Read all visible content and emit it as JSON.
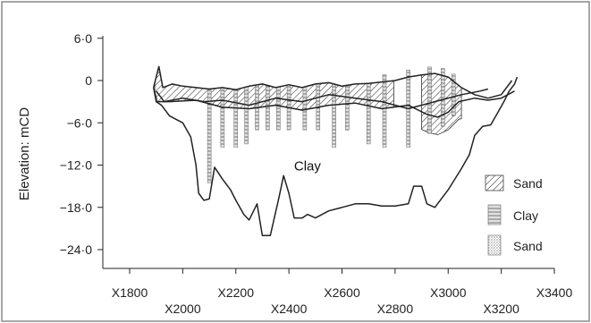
{
  "chart_data": {
    "type": "line",
    "title": "",
    "xlabel": "",
    "ylabel": "Elevation: mCD",
    "x_ticks": [
      "X1800",
      "X2000",
      "X2200",
      "X2400",
      "X2600",
      "X2800",
      "X3000",
      "X3200",
      "X3400"
    ],
    "x_range": [
      1800,
      3400
    ],
    "y_ticks": [
      "6·0",
      "0",
      "−6·0",
      "−12·0",
      "−18·0",
      "−24·0"
    ],
    "y_tick_values": [
      6,
      0,
      -6,
      -12,
      -18,
      -24
    ],
    "ylim": [
      -27,
      7.5
    ],
    "grid": false,
    "legend_position": "right",
    "annotations": [
      {
        "text": "Clay",
        "x": 2470,
        "y": -12
      }
    ],
    "legend": [
      {
        "label": "Sand",
        "pattern": "diagonal-hatch"
      },
      {
        "label": "Clay",
        "pattern": "vertical-stripes"
      },
      {
        "label": "Sand",
        "pattern": "dots"
      }
    ],
    "series": [
      {
        "values": [
          [
            1890,
            -1
          ],
          [
            1910,
            2
          ],
          [
            1925,
            -1
          ],
          [
            1960,
            -0.5
          ],
          [
            2000,
            -0.8
          ],
          [
            2050,
            -1
          ],
          [
            2100,
            -1.2
          ],
          [
            2150,
            -1
          ],
          [
            2200,
            -1.3
          ],
          [
            2250,
            -0.8
          ],
          [
            2300,
            -0.5
          ],
          [
            2350,
            -1
          ],
          [
            2400,
            -0.6
          ],
          [
            2450,
            -1
          ],
          [
            2500,
            -0.5
          ],
          [
            2550,
            -0.3
          ],
          [
            2600,
            -0.8
          ],
          [
            2650,
            -0.5
          ],
          [
            2700,
            -0.4
          ],
          [
            2750,
            -0.2
          ],
          [
            2800,
            0
          ],
          [
            2850,
            0.5
          ],
          [
            2900,
            0.8
          ],
          [
            2950,
            1
          ],
          [
            3000,
            0.5
          ],
          [
            3050,
            -1
          ],
          [
            3100,
            -2
          ],
          [
            3150,
            -2.5
          ],
          [
            3200,
            -2
          ],
          [
            3240,
            0
          ]
        ]
      },
      {
        "values": [
          [
            1900,
            -1.5
          ],
          [
            1930,
            -3
          ],
          [
            2000,
            -2.5
          ],
          [
            2080,
            -3
          ],
          [
            2150,
            -2.8
          ],
          [
            2250,
            -3.5
          ],
          [
            2350,
            -2.5
          ],
          [
            2450,
            -3
          ],
          [
            2550,
            -2
          ],
          [
            2650,
            -2.5
          ],
          [
            2750,
            -3
          ],
          [
            2850,
            -4
          ],
          [
            2950,
            -3
          ],
          [
            3050,
            -2
          ],
          [
            3120,
            -1.5
          ],
          [
            3150,
            -1.2
          ]
        ]
      },
      {
        "values": [
          [
            1900,
            -3
          ],
          [
            1950,
            -3
          ],
          [
            2050,
            -2.8
          ],
          [
            2150,
            -3.8
          ],
          [
            2250,
            -4
          ],
          [
            2350,
            -3.5
          ],
          [
            2450,
            -4.2
          ],
          [
            2550,
            -3.5
          ],
          [
            2650,
            -3.2
          ],
          [
            2750,
            -4
          ],
          [
            2850,
            -3.5
          ],
          [
            2920,
            -4.8
          ],
          [
            2960,
            -5.2
          ],
          [
            3000,
            -4.5
          ],
          [
            3040,
            -3
          ],
          [
            3100,
            -2.5
          ],
          [
            3150,
            -2.8
          ],
          [
            3200,
            -2.5
          ],
          [
            3250,
            -1.5
          ]
        ]
      },
      {
        "values": [
          [
            1890,
            -1
          ],
          [
            1900,
            -3
          ],
          [
            1920,
            -3.5
          ],
          [
            1950,
            -5
          ],
          [
            2000,
            -6
          ],
          [
            2030,
            -8
          ],
          [
            2050,
            -12
          ],
          [
            2060,
            -16
          ],
          [
            2080,
            -17
          ],
          [
            2100,
            -16.8
          ],
          [
            2120,
            -12.3
          ],
          [
            2150,
            -14
          ],
          [
            2180,
            -15.5
          ],
          [
            2200,
            -17
          ],
          [
            2230,
            -19
          ],
          [
            2250,
            -19.8
          ],
          [
            2280,
            -17.5
          ],
          [
            2300,
            -22
          ],
          [
            2330,
            -22
          ],
          [
            2360,
            -17
          ],
          [
            2380,
            -13.5
          ],
          [
            2400,
            -16
          ],
          [
            2420,
            -19.5
          ],
          [
            2450,
            -19.5
          ],
          [
            2470,
            -19
          ],
          [
            2500,
            -19.5
          ],
          [
            2550,
            -18.5
          ],
          [
            2600,
            -18
          ],
          [
            2650,
            -17.5
          ],
          [
            2700,
            -17.5
          ],
          [
            2750,
            -17.8
          ],
          [
            2800,
            -17.8
          ],
          [
            2850,
            -17.5
          ],
          [
            2870,
            -15
          ],
          [
            2900,
            -15
          ],
          [
            2920,
            -17.5
          ],
          [
            2950,
            -18
          ],
          [
            3000,
            -15.5
          ],
          [
            3050,
            -12.5
          ],
          [
            3080,
            -10.5
          ],
          [
            3100,
            -7.8
          ],
          [
            3130,
            -6.5
          ],
          [
            3160,
            -6.3
          ],
          [
            3180,
            -5
          ],
          [
            3210,
            -3
          ],
          [
            3230,
            -1.5
          ],
          [
            3250,
            -0.5
          ],
          [
            3260,
            0.5
          ]
        ]
      }
    ],
    "hatched_layers": [
      {
        "pattern": "diagonal-hatch",
        "x_start": 1895,
        "x_end": 2800
      },
      {
        "pattern": "diagonal-hatch",
        "x_start": 2900,
        "x_end": 3050
      }
    ],
    "borehole_columns_x": [
      2100,
      2150,
      2200,
      2240,
      2280,
      2320,
      2360,
      2400,
      2460,
      2510,
      2570,
      2620,
      2700,
      2760,
      2850,
      2930,
      2980,
      3020
    ]
  },
  "colors": {
    "line": "#222222",
    "frame": "#888888",
    "hatch": "#333333",
    "background": "#ffffff"
  }
}
